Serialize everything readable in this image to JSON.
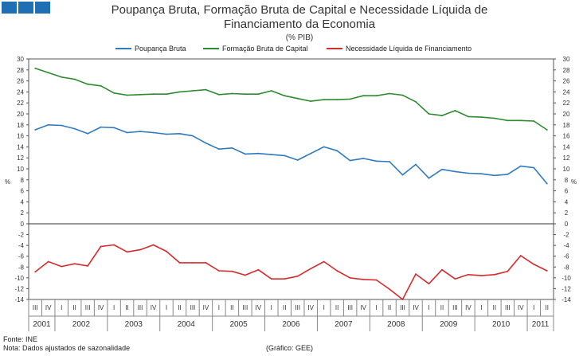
{
  "header": {
    "title_line1": "Poupança Bruta, Formação Bruta de Capital e Necessidade Líquida de",
    "title_line2": "Financiamento da Economia",
    "subtitle": "(% PIB)"
  },
  "footer": {
    "source": "Fonte: INE",
    "note": "Nota: Dados ajustados de sazonalidade",
    "credit": "(Gráfico: GEE)"
  },
  "chart_data": {
    "type": "line",
    "title": "Poupança Bruta, Formação Bruta de Capital e Necessidade Líquida de Financiamento da Economia",
    "subtitle": "(% PIB)",
    "ylabel": "%",
    "legend_position": "top-center",
    "top_panel": {
      "ylim": [
        0,
        30
      ],
      "yticks": [
        0,
        2,
        4,
        6,
        8,
        10,
        12,
        14,
        16,
        18,
        20,
        22,
        24,
        26,
        28,
        30
      ]
    },
    "bottom_panel": {
      "ylim": [
        -14,
        0
      ],
      "yticks": [
        -14,
        -12,
        -10,
        -8,
        -6,
        -4,
        -2
      ]
    },
    "x": [
      "III",
      "IV",
      "I",
      "II",
      "III",
      "IV",
      "I",
      "II",
      "III",
      "IV",
      "I",
      "II",
      "III",
      "IV",
      "I",
      "II",
      "III",
      "IV",
      "I",
      "II",
      "III",
      "IV",
      "I",
      "II",
      "III",
      "IV",
      "I",
      "II",
      "III",
      "IV",
      "I",
      "II",
      "III",
      "IV",
      "I",
      "II",
      "III",
      "IV",
      "I",
      "II"
    ],
    "years": [
      {
        "label": "2001",
        "start": 0,
        "count": 2
      },
      {
        "label": "2002",
        "start": 2,
        "count": 4
      },
      {
        "label": "2003",
        "start": 6,
        "count": 4
      },
      {
        "label": "2004",
        "start": 10,
        "count": 4
      },
      {
        "label": "2005",
        "start": 14,
        "count": 4
      },
      {
        "label": "2006",
        "start": 18,
        "count": 4
      },
      {
        "label": "2007",
        "start": 22,
        "count": 4
      },
      {
        "label": "2008",
        "start": 26,
        "count": 4
      },
      {
        "label": "2009",
        "start": 30,
        "count": 4
      },
      {
        "label": "2010",
        "start": 34,
        "count": 4
      },
      {
        "label": "2011",
        "start": 38,
        "count": 2
      }
    ],
    "series": [
      {
        "name": "Poupança Bruta",
        "color": "#2e7bbf",
        "panel": "top",
        "values": [
          17.1,
          18.0,
          17.9,
          17.3,
          16.4,
          17.6,
          17.5,
          16.6,
          16.8,
          16.6,
          16.3,
          16.4,
          16.0,
          14.7,
          13.6,
          13.8,
          12.7,
          12.8,
          12.6,
          12.4,
          11.6,
          12.8,
          14.0,
          13.3,
          11.5,
          11.9,
          11.4,
          11.3,
          8.9,
          10.8,
          8.3,
          9.9,
          9.5,
          9.2,
          9.1,
          8.8,
          9.0,
          10.5,
          10.2,
          7.3
        ]
      },
      {
        "name": "Formação Bruta de Capital",
        "color": "#2e8b2e",
        "panel": "top",
        "values": [
          28.3,
          27.5,
          26.7,
          26.3,
          25.4,
          25.1,
          23.8,
          23.4,
          23.5,
          23.6,
          23.6,
          24.0,
          24.2,
          24.4,
          23.5,
          23.7,
          23.6,
          23.6,
          24.2,
          23.3,
          22.8,
          22.3,
          22.6,
          22.6,
          22.7,
          23.3,
          23.3,
          23.7,
          23.4,
          22.2,
          20.0,
          19.7,
          20.6,
          19.5,
          19.4,
          19.2,
          18.8,
          18.8,
          18.7,
          17.1
        ]
      },
      {
        "name": "Necessidade Líquida de Financiamento",
        "color": "#d62c2c",
        "panel": "bottom",
        "values": [
          -8.9,
          -7.0,
          -7.9,
          -7.4,
          -7.8,
          -4.2,
          -3.9,
          -5.2,
          -4.8,
          -3.9,
          -5.1,
          -7.2,
          -7.2,
          -7.2,
          -8.7,
          -8.8,
          -9.5,
          -8.5,
          -10.2,
          -10.2,
          -9.7,
          -8.3,
          -7.0,
          -8.7,
          -10.0,
          -10.3,
          -10.4,
          -12.1,
          -14.0,
          -9.3,
          -11.1,
          -8.5,
          -10.2,
          -9.4,
          -9.6,
          -9.4,
          -8.8,
          -5.9,
          -7.5,
          -8.7
        ]
      }
    ]
  }
}
